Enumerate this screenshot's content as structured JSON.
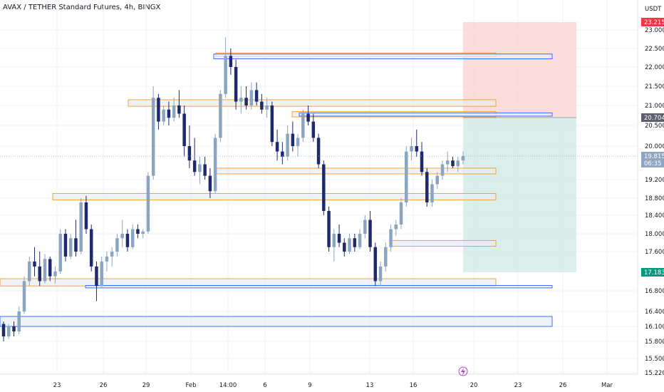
{
  "header": {
    "symbol_title": "AVAX / TETHER Standard Futures, 4h, BINGX"
  },
  "colors": {
    "up": "#8aa5bf",
    "down": "#1e2a6b",
    "zone_orange": "#f59c1a",
    "zone_blue": "#2962ff",
    "zone_fill": "#e8edf3",
    "stop_fill": "#f9d3cf",
    "target_fill": "#d4ece8",
    "label_red": "#f23645",
    "label_gray": "#5d606b",
    "label_current": "#8ea6bf",
    "label_teal": "#089981"
  },
  "chart_data": {
    "type": "candlestick",
    "symbol": "AVAX / TETHER",
    "instrument": "Standard Futures",
    "timeframe": "4h",
    "exchange": "BINGX",
    "currency": "USDT",
    "y_ticks": [
      "23.000",
      "22.500",
      "22.000",
      "21.500",
      "21.000",
      "20.500",
      "20.000",
      "19.200",
      "18.800",
      "18.400",
      "18.000",
      "17.600",
      "16.800",
      "16.400",
      "16.100",
      "15.800",
      "15.500",
      "15.220"
    ],
    "x_ticks": [
      "23",
      "26",
      "29",
      "Feb",
      "14:00",
      "6",
      "9",
      "13",
      "16",
      "20",
      "23",
      "26",
      "Mar"
    ],
    "price_labels": [
      {
        "text": "23.215",
        "role": "stop"
      },
      {
        "text": "20.704",
        "role": "entry"
      },
      {
        "text": "19.815",
        "sub": "06:35",
        "role": "current"
      },
      {
        "text": "17.183",
        "role": "target"
      }
    ],
    "series_ohlc": [
      [
        16.15,
        16.2,
        15.8,
        15.9
      ],
      [
        15.9,
        16.15,
        15.85,
        16.1
      ],
      [
        16.1,
        16.2,
        15.9,
        16.0
      ],
      [
        16.0,
        16.5,
        15.95,
        16.4
      ],
      [
        16.4,
        17.1,
        16.35,
        17.0
      ],
      [
        17.0,
        17.5,
        16.9,
        17.4
      ],
      [
        17.4,
        17.7,
        17.1,
        17.3
      ],
      [
        17.3,
        17.6,
        16.9,
        17.0
      ],
      [
        17.0,
        17.55,
        16.95,
        17.45
      ],
      [
        17.45,
        17.5,
        17.0,
        17.1
      ],
      [
        17.1,
        17.3,
        16.95,
        17.2
      ],
      [
        17.2,
        18.1,
        17.15,
        18.0
      ],
      [
        18.0,
        18.1,
        17.4,
        17.5
      ],
      [
        17.5,
        18.0,
        17.45,
        17.9
      ],
      [
        17.9,
        18.3,
        17.5,
        17.6
      ],
      [
        17.6,
        18.8,
        17.55,
        18.7
      ],
      [
        18.7,
        18.85,
        18.0,
        18.1
      ],
      [
        18.1,
        18.2,
        17.2,
        17.3
      ],
      [
        17.3,
        17.4,
        16.6,
        16.9
      ],
      [
        16.9,
        17.5,
        16.85,
        17.4
      ],
      [
        17.4,
        17.6,
        17.2,
        17.5
      ],
      [
        17.5,
        17.7,
        17.3,
        17.6
      ],
      [
        17.6,
        18.0,
        17.5,
        17.9
      ],
      [
        17.9,
        18.3,
        17.7,
        18.0
      ],
      [
        18.0,
        18.1,
        17.6,
        17.7
      ],
      [
        17.7,
        18.2,
        17.65,
        18.1
      ],
      [
        18.1,
        18.2,
        17.9,
        18.0
      ],
      [
        18.0,
        18.1,
        17.9,
        18.05
      ],
      [
        18.05,
        19.4,
        18.0,
        19.3
      ],
      [
        19.3,
        21.5,
        19.2,
        21.2
      ],
      [
        21.2,
        21.3,
        20.4,
        20.6
      ],
      [
        20.6,
        21.0,
        20.5,
        20.9
      ],
      [
        20.9,
        21.1,
        20.5,
        20.7
      ],
      [
        20.7,
        21.2,
        20.6,
        21.0
      ],
      [
        21.0,
        21.4,
        20.7,
        20.8
      ],
      [
        20.8,
        21.0,
        19.8,
        20.0
      ],
      [
        20.0,
        20.5,
        19.5,
        19.7
      ],
      [
        19.7,
        20.2,
        19.3,
        19.4
      ],
      [
        19.4,
        19.8,
        19.1,
        19.6
      ],
      [
        19.6,
        19.8,
        19.2,
        19.3
      ],
      [
        19.3,
        19.5,
        18.8,
        18.95
      ],
      [
        18.95,
        20.3,
        18.9,
        20.2
      ],
      [
        20.2,
        21.4,
        20.1,
        21.3
      ],
      [
        21.3,
        22.8,
        21.2,
        22.3
      ],
      [
        22.3,
        22.5,
        21.8,
        22.0
      ],
      [
        22.0,
        22.2,
        20.9,
        21.1
      ],
      [
        21.1,
        21.5,
        20.8,
        21.2
      ],
      [
        21.2,
        21.5,
        20.9,
        21.0
      ],
      [
        21.0,
        21.6,
        20.9,
        21.4
      ],
      [
        21.4,
        21.6,
        21.0,
        21.1
      ],
      [
        21.1,
        21.3,
        20.8,
        20.9
      ],
      [
        20.9,
        21.2,
        20.7,
        21.0
      ],
      [
        21.0,
        21.1,
        20.0,
        20.1
      ],
      [
        20.1,
        20.4,
        19.7,
        19.9
      ],
      [
        19.9,
        20.1,
        19.6,
        19.8
      ],
      [
        19.8,
        20.5,
        19.7,
        20.3
      ],
      [
        20.3,
        20.6,
        19.9,
        20.0
      ],
      [
        20.0,
        20.3,
        19.8,
        20.2
      ],
      [
        20.2,
        20.9,
        20.1,
        20.8
      ],
      [
        20.8,
        21.0,
        20.5,
        20.6
      ],
      [
        20.6,
        20.8,
        20.1,
        20.2
      ],
      [
        20.2,
        20.3,
        19.5,
        19.6
      ],
      [
        19.6,
        19.7,
        18.4,
        18.5
      ],
      [
        18.5,
        18.6,
        17.6,
        17.7
      ],
      [
        17.7,
        18.1,
        17.4,
        18.0
      ],
      [
        18.0,
        18.2,
        17.7,
        17.8
      ],
      [
        17.8,
        17.9,
        17.5,
        17.6
      ],
      [
        17.6,
        18.0,
        17.55,
        17.9
      ],
      [
        17.9,
        18.0,
        17.6,
        17.7
      ],
      [
        17.7,
        18.1,
        17.65,
        18.0
      ],
      [
        18.0,
        18.4,
        17.9,
        18.3
      ],
      [
        18.3,
        18.5,
        17.6,
        17.7
      ],
      [
        17.7,
        17.8,
        16.9,
        17.0
      ],
      [
        17.0,
        17.4,
        16.9,
        17.3
      ],
      [
        17.3,
        17.8,
        17.2,
        17.7
      ],
      [
        17.7,
        18.2,
        17.6,
        18.1
      ],
      [
        18.1,
        18.3,
        17.95,
        18.2
      ],
      [
        18.2,
        18.8,
        18.1,
        18.7
      ],
      [
        18.7,
        20.0,
        18.6,
        19.9
      ],
      [
        19.9,
        20.2,
        19.7,
        20.0
      ],
      [
        20.0,
        20.4,
        19.8,
        19.9
      ],
      [
        19.9,
        20.1,
        19.3,
        19.4
      ],
      [
        19.4,
        19.5,
        18.6,
        18.7
      ],
      [
        18.7,
        19.2,
        18.6,
        19.1
      ],
      [
        19.1,
        19.4,
        19.0,
        19.3
      ],
      [
        19.3,
        19.7,
        19.2,
        19.6
      ],
      [
        19.6,
        19.9,
        19.4,
        19.7
      ],
      [
        19.7,
        19.8,
        19.5,
        19.55
      ],
      [
        19.55,
        19.8,
        19.4,
        19.7
      ],
      [
        19.7,
        19.9,
        19.6,
        19.815
      ]
    ]
  }
}
